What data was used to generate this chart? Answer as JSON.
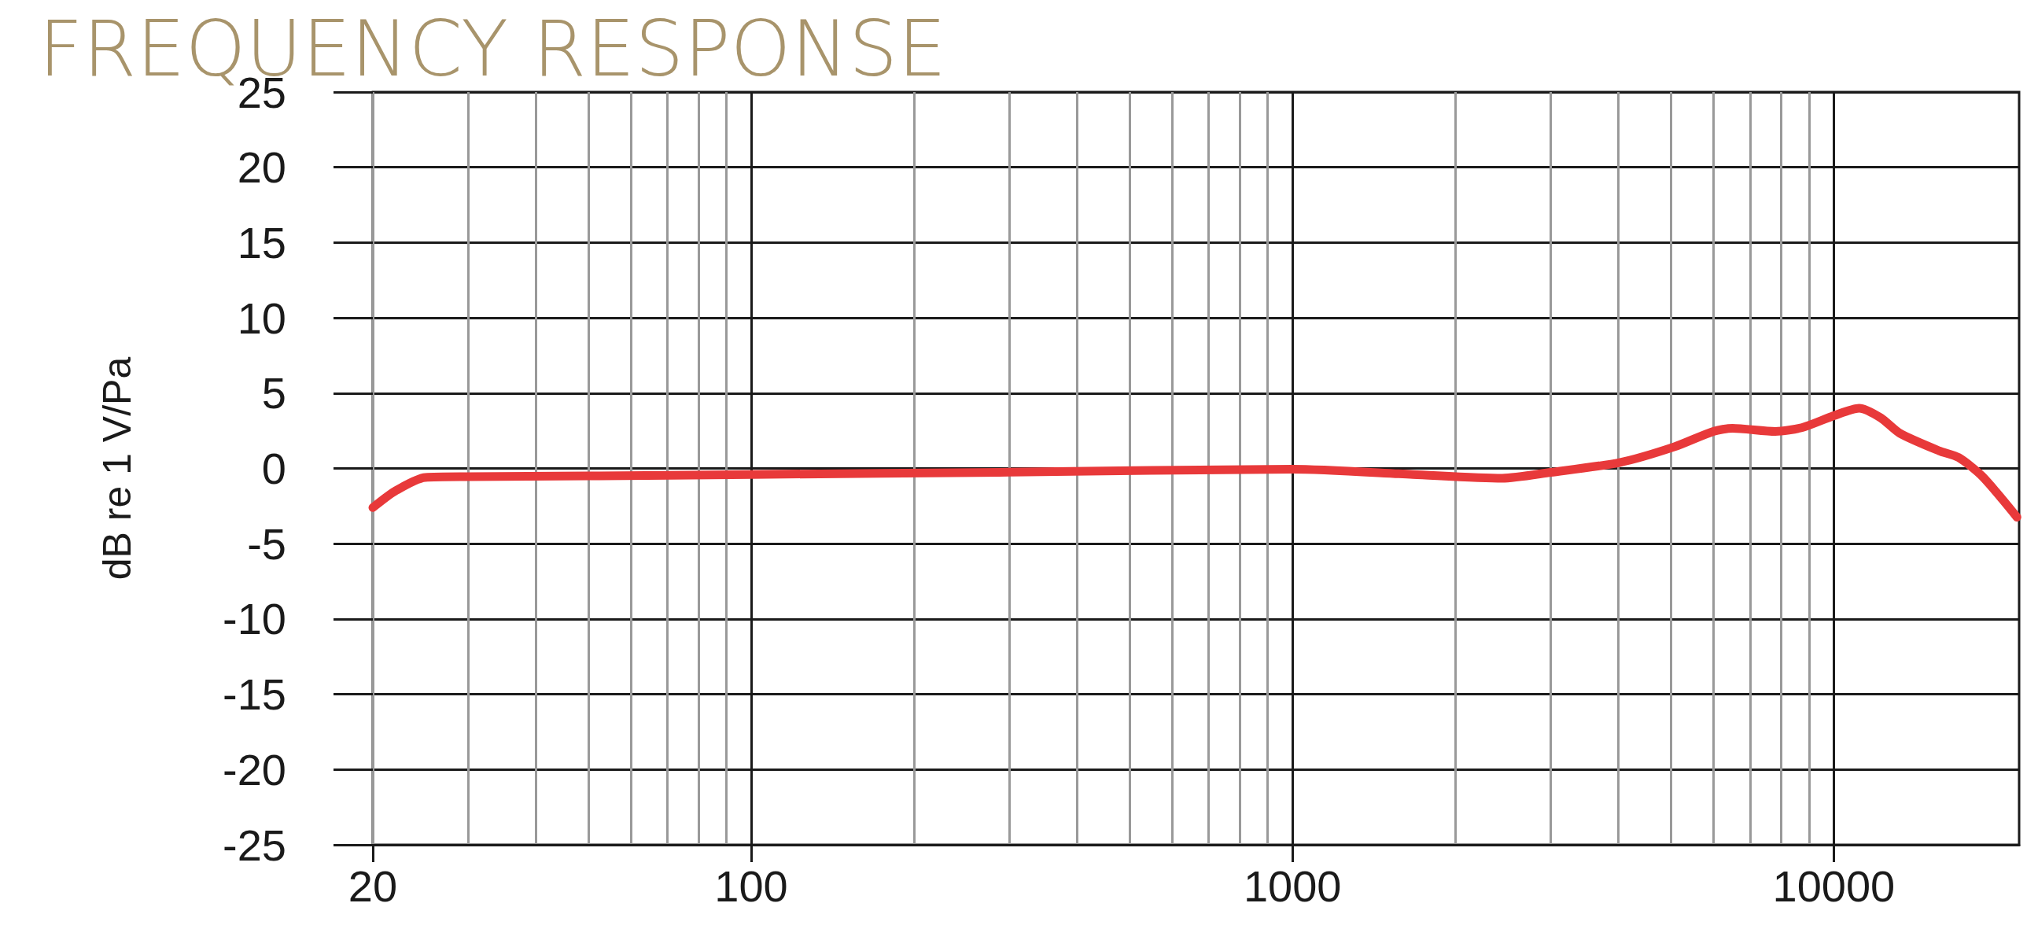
{
  "chart_data": {
    "type": "line",
    "title": "FREQUENCY RESPONSE",
    "ylabel": "dB re 1 V/Pa",
    "log": "x",
    "xlim": [
      20,
      22000
    ],
    "xticks": [
      20,
      {
        "value": 30,
        "label": null
      },
      {
        "value": 40,
        "label": null
      },
      {
        "value": 50,
        "label": null
      },
      {
        "value": 60,
        "label": null
      },
      {
        "value": 70,
        "label": null
      },
      {
        "value": 80,
        "label": null
      },
      {
        "value": 90,
        "label": null
      },
      100,
      {
        "value": 200,
        "label": null
      },
      {
        "value": 300,
        "label": null
      },
      {
        "value": 400,
        "label": null
      },
      {
        "value": 500,
        "label": null
      },
      {
        "value": 600,
        "label": null
      },
      {
        "value": 700,
        "label": null
      },
      {
        "value": 800,
        "label": null
      },
      {
        "value": 900,
        "label": null
      },
      1000,
      {
        "value": 2000,
        "label": null
      },
      {
        "value": 3000,
        "label": null
      },
      {
        "value": 4000,
        "label": null
      },
      {
        "value": 5000,
        "label": null
      },
      {
        "value": 6000,
        "label": null
      },
      {
        "value": 7000,
        "label": null
      },
      {
        "value": 8000,
        "label": null
      },
      {
        "value": 9000,
        "label": null
      },
      10000
    ],
    "ylim": [
      -25,
      25
    ],
    "yticks": [
      25,
      20,
      15,
      10,
      5,
      0,
      -5,
      -10,
      -15,
      -20,
      -25
    ],
    "grid": true,
    "line_style": "solid",
    "series": [
      {
        "color": "#e8393a",
        "x": [
          20,
          22,
          25,
          30,
          50,
          100,
          300,
          1000,
          1670,
          2440,
          3000,
          4020,
          5070,
          5990,
          6500,
          7800,
          8750,
          10000,
          11140,
          12200,
          13250,
          15650,
          17000,
          18800,
          21800
        ],
        "values": [
          -2.6,
          -1.5,
          -0.6,
          -0.55,
          -0.5,
          -0.4,
          -0.25,
          -0.05,
          -0.4,
          -0.65,
          -0.26,
          0.39,
          1.43,
          2.46,
          2.67,
          2.46,
          2.72,
          3.5,
          4.0,
          3.37,
          2.33,
          1.17,
          0.73,
          -0.52,
          -3.24
        ]
      }
    ]
  }
}
